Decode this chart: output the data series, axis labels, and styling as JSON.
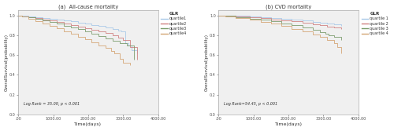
{
  "panel_a": {
    "title": "(a)  All-cause mortality",
    "xlabel": "Time(days)",
    "ylabel": "OverallSurvival(probability)",
    "log_rank_text": "Log Rank = 35.09, p < 0.001",
    "xlim": [
      0,
      4000
    ],
    "ylim": [
      0.0,
      1.05
    ],
    "xticks": [
      0,
      1000,
      2000,
      3000,
      4000
    ],
    "xtick_labels": [
      ".00",
      "1000.00",
      "2000.00",
      "3000.00",
      "4000.00"
    ],
    "yticks": [
      0.0,
      0.2,
      0.4,
      0.6,
      0.8,
      1.0
    ],
    "curves": {
      "quartile1": {
        "x": [
          0,
          100,
          300,
          500,
          700,
          900,
          1100,
          1300,
          1500,
          1700,
          1900,
          2100,
          2300,
          2500,
          2700,
          2850,
          2950,
          3050,
          3150,
          3250,
          3400
        ],
        "y": [
          1.0,
          0.995,
          0.988,
          0.98,
          0.972,
          0.964,
          0.956,
          0.948,
          0.938,
          0.928,
          0.918,
          0.906,
          0.893,
          0.88,
          0.862,
          0.848,
          0.835,
          0.72,
          0.7,
          0.65,
          0.62
        ],
        "color": "#A8C8E8",
        "label": "quartile1"
      },
      "quartile2": {
        "x": [
          0,
          100,
          300,
          500,
          700,
          900,
          1100,
          1300,
          1500,
          1700,
          1900,
          2100,
          2300,
          2500,
          2700,
          2850,
          3000,
          3200,
          3400
        ],
        "y": [
          1.0,
          0.993,
          0.982,
          0.97,
          0.958,
          0.946,
          0.932,
          0.918,
          0.904,
          0.889,
          0.873,
          0.857,
          0.839,
          0.82,
          0.798,
          0.777,
          0.755,
          0.68,
          0.55
        ],
        "color": "#D08080",
        "label": "quartile2"
      },
      "quartile3": {
        "x": [
          0,
          100,
          300,
          500,
          700,
          900,
          1100,
          1300,
          1500,
          1700,
          1900,
          2100,
          2300,
          2500,
          2700,
          2900,
          3100,
          3300
        ],
        "y": [
          1.0,
          0.992,
          0.978,
          0.963,
          0.948,
          0.932,
          0.915,
          0.897,
          0.878,
          0.859,
          0.838,
          0.817,
          0.794,
          0.77,
          0.745,
          0.72,
          0.695,
          0.55
        ],
        "color": "#7A9B6B",
        "label": "quartile3"
      },
      "quartile4": {
        "x": [
          0,
          100,
          300,
          500,
          700,
          900,
          1100,
          1300,
          1500,
          1700,
          1900,
          2100,
          2300,
          2500,
          2650,
          2750,
          2900,
          3000,
          3200
        ],
        "y": [
          1.0,
          0.988,
          0.965,
          0.942,
          0.918,
          0.893,
          0.868,
          0.842,
          0.815,
          0.787,
          0.758,
          0.73,
          0.7,
          0.67,
          0.64,
          0.615,
          0.56,
          0.52,
          0.5
        ],
        "color": "#D4A574",
        "label": "quartile4"
      }
    }
  },
  "panel_b": {
    "title": "(b) CVD mortality",
    "xlabel": "Time(days)",
    "ylabel": "OverallSurvival(probability)",
    "log_rank_text": "Log Rank=54.45, p < 0.001",
    "xlim": [
      0,
      4000
    ],
    "ylim": [
      0.0,
      1.05
    ],
    "xticks": [
      0,
      1000,
      2000,
      3000,
      4000
    ],
    "xtick_labels": [
      ".00",
      "1000.00",
      "2000.00",
      "3000.00",
      "4000.00"
    ],
    "yticks": [
      0.0,
      0.2,
      0.4,
      0.6,
      0.8,
      1.0
    ],
    "curves": {
      "quartile1": {
        "x": [
          0,
          200,
          500,
          900,
          1200,
          1500,
          1800,
          2100,
          2400,
          2700,
          2900,
          3100,
          3300,
          3500
        ],
        "y": [
          1.0,
          0.998,
          0.994,
          0.988,
          0.982,
          0.975,
          0.967,
          0.958,
          0.948,
          0.937,
          0.928,
          0.92,
          0.908,
          0.895
        ],
        "color": "#A8C8E8",
        "label": "quartile 1"
      },
      "quartile2": {
        "x": [
          0,
          200,
          500,
          900,
          1200,
          1500,
          1800,
          2100,
          2400,
          2700,
          2900,
          3100,
          3300,
          3500
        ],
        "y": [
          1.0,
          0.996,
          0.989,
          0.98,
          0.971,
          0.961,
          0.95,
          0.938,
          0.925,
          0.912,
          0.9,
          0.888,
          0.876,
          0.86
        ],
        "color": "#D08080",
        "label": "quartile 2"
      },
      "quartile3": {
        "x": [
          0,
          200,
          500,
          900,
          1200,
          1500,
          1800,
          2100,
          2400,
          2700,
          2900,
          3050,
          3150,
          3300,
          3500
        ],
        "y": [
          1.0,
          0.994,
          0.983,
          0.968,
          0.954,
          0.938,
          0.92,
          0.9,
          0.878,
          0.854,
          0.834,
          0.818,
          0.8,
          0.78,
          0.755
        ],
        "color": "#7A9B6B",
        "label": "quartile 3"
      },
      "quartile4": {
        "x": [
          0,
          200,
          500,
          900,
          1200,
          1500,
          1800,
          2100,
          2400,
          2700,
          2900,
          3100,
          3300,
          3400,
          3500
        ],
        "y": [
          1.0,
          0.991,
          0.976,
          0.956,
          0.937,
          0.915,
          0.891,
          0.865,
          0.838,
          0.808,
          0.782,
          0.754,
          0.723,
          0.68,
          0.62
        ],
        "color": "#D4A574",
        "label": "quartile 4"
      }
    }
  },
  "legend_title": "GLR",
  "background_color": "#ffffff",
  "axes_bg_color": "#f0f0f0"
}
